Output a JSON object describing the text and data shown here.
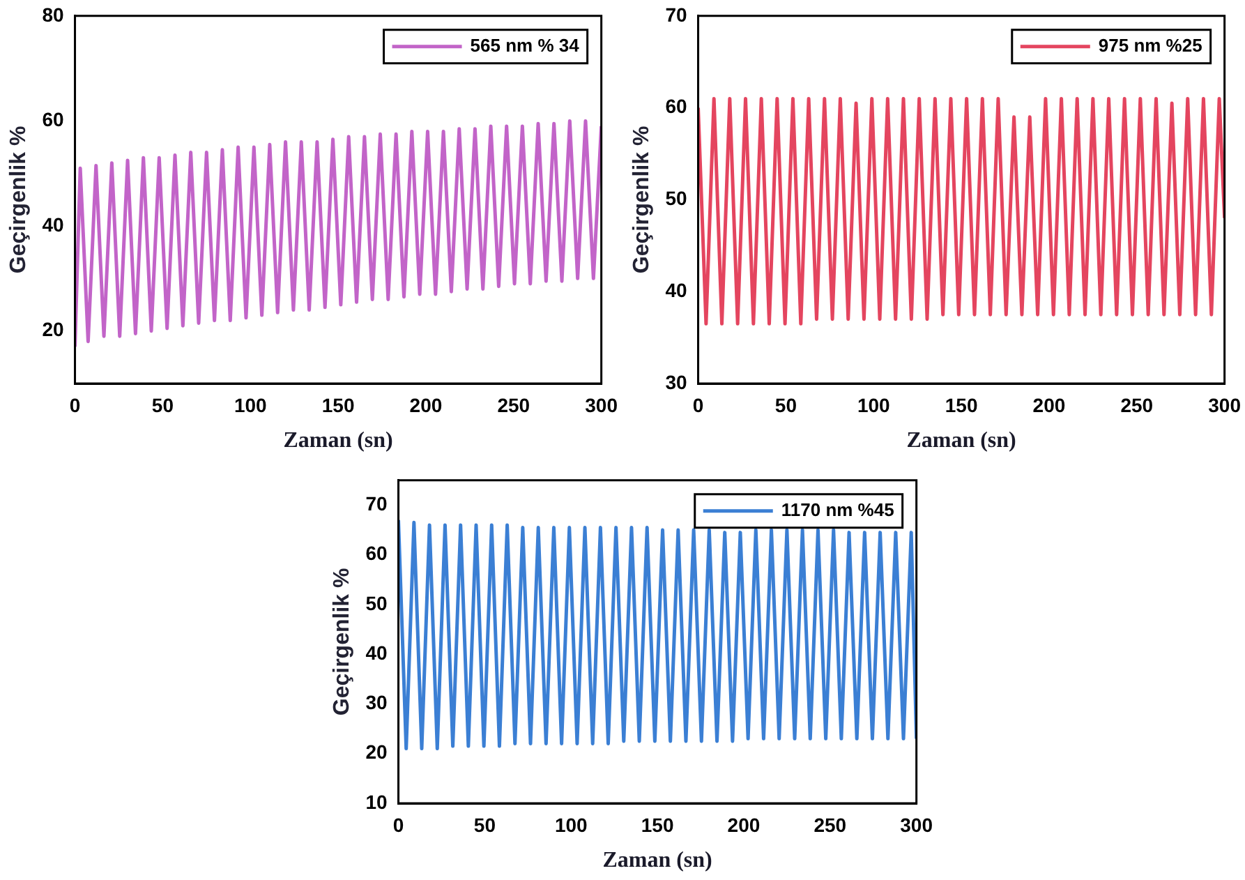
{
  "chart_data": [
    {
      "type": "line",
      "xlabel": "Zaman (sn)",
      "ylabel": "Geçirgenlik %",
      "legend": "top right",
      "grid": false,
      "xlim": [
        0,
        300
      ],
      "xticks": [
        0,
        50,
        100,
        150,
        200,
        250,
        300
      ],
      "ylim": [
        10,
        80
      ],
      "yticks": [
        20,
        40,
        60,
        80
      ],
      "series": [
        {
          "name": "565 nm % 34",
          "color": "#c264c8",
          "x": [
            0,
            3,
            7.5,
            12,
            16.5,
            21,
            25.5,
            30,
            34.5,
            39,
            43.5,
            48,
            52.5,
            57,
            61.5,
            66,
            70.5,
            75,
            79.5,
            84,
            88.5,
            93,
            97.5,
            102,
            106.5,
            111,
            115.5,
            120,
            124.5,
            129,
            133.5,
            138,
            142.5,
            147,
            151.5,
            156,
            160.5,
            165,
            169.5,
            174,
            178.5,
            183,
            187.5,
            192,
            196.5,
            201,
            205.5,
            210,
            214.5,
            219,
            223.5,
            228,
            232.5,
            237,
            241.5,
            246,
            250.5,
            255,
            259.5,
            264,
            268.5,
            273,
            277.5,
            282,
            286.5,
            291,
            295.5,
            300
          ],
          "values": [
            17,
            51,
            18,
            51.5,
            19,
            52,
            19,
            52.5,
            19.5,
            53,
            20,
            53,
            20.5,
            53.5,
            21,
            54,
            21.5,
            54,
            22,
            54.5,
            22,
            55,
            22.5,
            55,
            23,
            55.5,
            23.5,
            56,
            24,
            56,
            24,
            56,
            24.5,
            56.5,
            25,
            57,
            25.5,
            57,
            26,
            57.5,
            26,
            57.5,
            26.5,
            58,
            27,
            58,
            27,
            58,
            27.5,
            58.5,
            28,
            58.5,
            28,
            59,
            28.5,
            59,
            29,
            59,
            29,
            59.5,
            29.5,
            59.5,
            29.5,
            60,
            30,
            60,
            30,
            59
          ]
        }
      ]
    },
    {
      "type": "line",
      "xlabel": "Zaman (sn)",
      "ylabel": "Geçirgenlik %",
      "legend": "top right",
      "grid": false,
      "xlim": [
        0,
        300
      ],
      "xticks": [
        0,
        50,
        100,
        150,
        200,
        250,
        300
      ],
      "ylim": [
        30,
        70
      ],
      "yticks": [
        30,
        40,
        50,
        60,
        70
      ],
      "series": [
        {
          "name": "975 nm %25",
          "color": "#e4455f",
          "x": [
            0,
            4.5,
            9,
            13.5,
            18,
            22.5,
            27,
            31.5,
            36,
            40.5,
            45,
            49.5,
            54,
            58.5,
            63,
            67.5,
            72,
            76.5,
            81,
            85.5,
            90,
            94.5,
            99,
            103.5,
            108,
            112.5,
            117,
            121.5,
            126,
            130.5,
            135,
            139.5,
            144,
            148.5,
            153,
            157.5,
            162,
            166.5,
            171,
            175.5,
            180,
            184.5,
            189,
            193.5,
            198,
            202.5,
            207,
            211.5,
            216,
            220.5,
            225,
            229.5,
            234,
            238.5,
            243,
            247.5,
            252,
            256.5,
            261,
            265.5,
            270,
            274.5,
            279,
            283.5,
            288,
            292.5,
            297,
            300
          ],
          "values": [
            60,
            36.5,
            61,
            36.5,
            61,
            36.5,
            61,
            36.5,
            61,
            36.5,
            61,
            36.5,
            61,
            36.5,
            61,
            37,
            61,
            37,
            61,
            37,
            60.5,
            37,
            61,
            37,
            61,
            37,
            61,
            37,
            61,
            37,
            61,
            37.5,
            61,
            37.5,
            61,
            37.5,
            61,
            37.5,
            61,
            37.5,
            59,
            37.5,
            59,
            37.5,
            61,
            37.5,
            61,
            37.5,
            61,
            37.5,
            61,
            37.5,
            61,
            37.5,
            61,
            37.5,
            61,
            37.5,
            61,
            37.5,
            60.5,
            37.5,
            61,
            37.5,
            61,
            37.5,
            61,
            48
          ]
        }
      ]
    },
    {
      "type": "line",
      "xlabel": "Zaman (sn)",
      "ylabel": "Geçirgenlik %",
      "legend": "top right",
      "grid": false,
      "xlim": [
        0,
        300
      ],
      "xticks": [
        0,
        50,
        100,
        150,
        200,
        250,
        300
      ],
      "ylim": [
        10,
        75
      ],
      "yticks": [
        10,
        20,
        30,
        40,
        50,
        60,
        70
      ],
      "series": [
        {
          "name": "1170 nm %45",
          "color": "#3b7fd4",
          "x": [
            0,
            4.5,
            9,
            13.5,
            18,
            22.5,
            27,
            31.5,
            36,
            40.5,
            45,
            49.5,
            54,
            58.5,
            63,
            67.5,
            72,
            76.5,
            81,
            85.5,
            90,
            94.5,
            99,
            103.5,
            108,
            112.5,
            117,
            121.5,
            126,
            130.5,
            135,
            139.5,
            144,
            148.5,
            153,
            157.5,
            162,
            166.5,
            171,
            175.5,
            180,
            184.5,
            189,
            193.5,
            198,
            202.5,
            207,
            211.5,
            216,
            220.5,
            225,
            229.5,
            234,
            238.5,
            243,
            247.5,
            252,
            256.5,
            261,
            265.5,
            270,
            274.5,
            279,
            283.5,
            288,
            292.5,
            297,
            300
          ],
          "values": [
            67,
            21,
            66.5,
            21,
            66,
            21,
            66,
            21.5,
            66,
            21.5,
            66,
            21.5,
            66,
            21.5,
            66,
            22,
            65.5,
            22,
            65.5,
            22,
            65.5,
            22,
            65.5,
            22,
            65.5,
            22,
            65.5,
            22,
            65.5,
            22.5,
            65.5,
            22.5,
            65.5,
            22.5,
            65,
            22.5,
            65,
            22.5,
            65,
            22.5,
            65,
            22.5,
            64.5,
            22.5,
            64.5,
            23,
            65,
            23,
            65,
            23,
            65,
            23,
            65,
            23,
            65,
            23,
            65,
            23,
            64.5,
            23,
            64.5,
            23,
            64.5,
            23,
            64.5,
            23,
            64.5,
            23
          ]
        }
      ]
    }
  ]
}
